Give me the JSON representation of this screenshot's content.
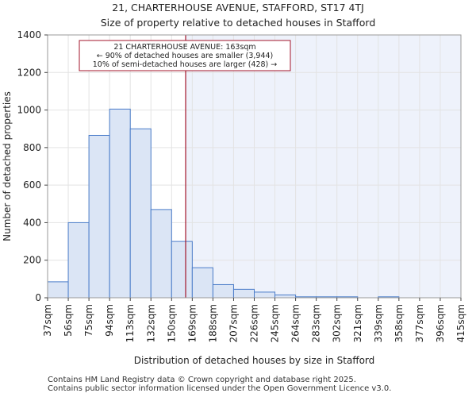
{
  "titles": {
    "line1": "21, CHARTERHOUSE AVENUE, STAFFORD, ST17 4TJ",
    "line2": "Size of property relative to detached houses in Stafford"
  },
  "footer": {
    "line1": "Contains HM Land Registry data © Crown copyright and database right 2025.",
    "line2": "Contains public sector information licensed under the Open Government Licence v3.0."
  },
  "colors": {
    "bar_fill": "#dbe5f5",
    "bar_stroke": "#4a7cc9",
    "highlight_bg": "#eef2fb",
    "marker_line": "#a3162b",
    "annotation_border": "#a3162b",
    "grid": "#e3e3e3"
  },
  "chart_data": {
    "type": "bar",
    "title": "21, CHARTERHOUSE AVENUE, STAFFORD, ST17 4TJ",
    "subtitle": "Size of property relative to detached houses in Stafford",
    "xlabel": "Distribution of detached houses by size in Stafford",
    "ylabel": "Number of detached properties",
    "ylim": [
      0,
      1400
    ],
    "yticks": [
      0,
      200,
      400,
      600,
      800,
      1000,
      1200,
      1400
    ],
    "grid": true,
    "bin_edges": [
      "37sqm",
      "56sqm",
      "75sqm",
      "94sqm",
      "113sqm",
      "132sqm",
      "150sqm",
      "169sqm",
      "188sqm",
      "207sqm",
      "226sqm",
      "245sqm",
      "264sqm",
      "283sqm",
      "302sqm",
      "321sqm",
      "339sqm",
      "358sqm",
      "377sqm",
      "396sqm",
      "415sqm"
    ],
    "values": [
      85,
      400,
      865,
      1005,
      900,
      470,
      300,
      160,
      70,
      45,
      30,
      15,
      5,
      5,
      5,
      0,
      5,
      0,
      0,
      0
    ],
    "marker": {
      "value_sqm": 163,
      "bin_position": 6.68
    },
    "annotation": {
      "line1": "21 CHARTERHOUSE AVENUE: 163sqm",
      "line2": "← 90% of detached houses are smaller (3,944)",
      "line3": "10% of semi-detached houses are larger (428) →"
    }
  }
}
